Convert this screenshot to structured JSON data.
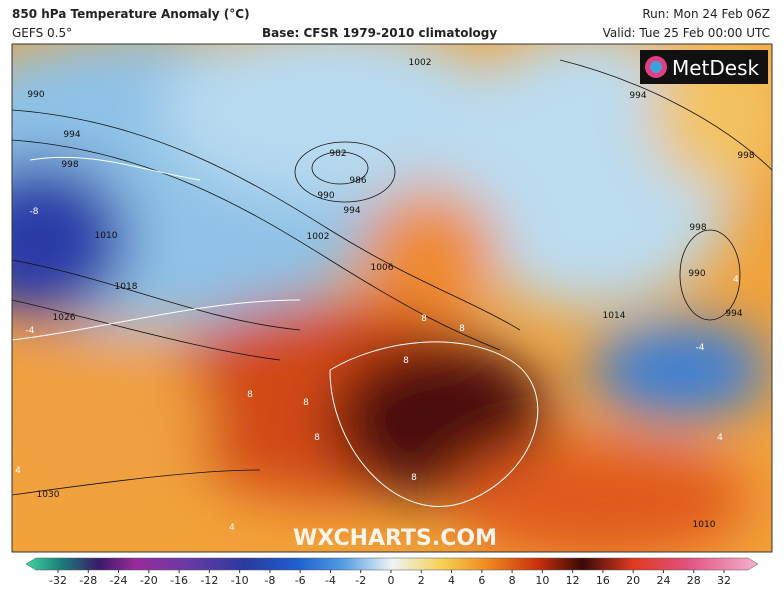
{
  "header": {
    "title": "850 hPa Temperature Anomaly (°C)",
    "model": "GEFS 0.5°",
    "base": "Base: CFSR 1979-2010 climatology",
    "run": "Run: Mon 24 Feb 06Z",
    "valid": "Valid: Tue 25 Feb 00:00 UTC"
  },
  "map": {
    "brand": "MetDesk",
    "watermark": "WXCHARTS.COM",
    "isobar_labels": [
      "990",
      "994",
      "998",
      "1010",
      "1018",
      "1026",
      "1030",
      "1002",
      "982",
      "986",
      "990",
      "994",
      "1002",
      "1006",
      "994",
      "998",
      "998",
      "990",
      "994",
      "1014",
      "1010"
    ],
    "temperature_labels": [
      "-8",
      "-4",
      "8",
      "8",
      "8",
      "8",
      "8",
      "8",
      "8",
      "4",
      "4",
      "-4",
      "4",
      "4"
    ]
  },
  "colorbar": {
    "ticks": [
      "-32",
      "-28",
      "-24",
      "-20",
      "-16",
      "-12",
      "-10",
      "-8",
      "-6",
      "-4",
      "-2",
      "0",
      "2",
      "4",
      "6",
      "8",
      "10",
      "12",
      "16",
      "20",
      "24",
      "28",
      "32"
    ]
  }
}
